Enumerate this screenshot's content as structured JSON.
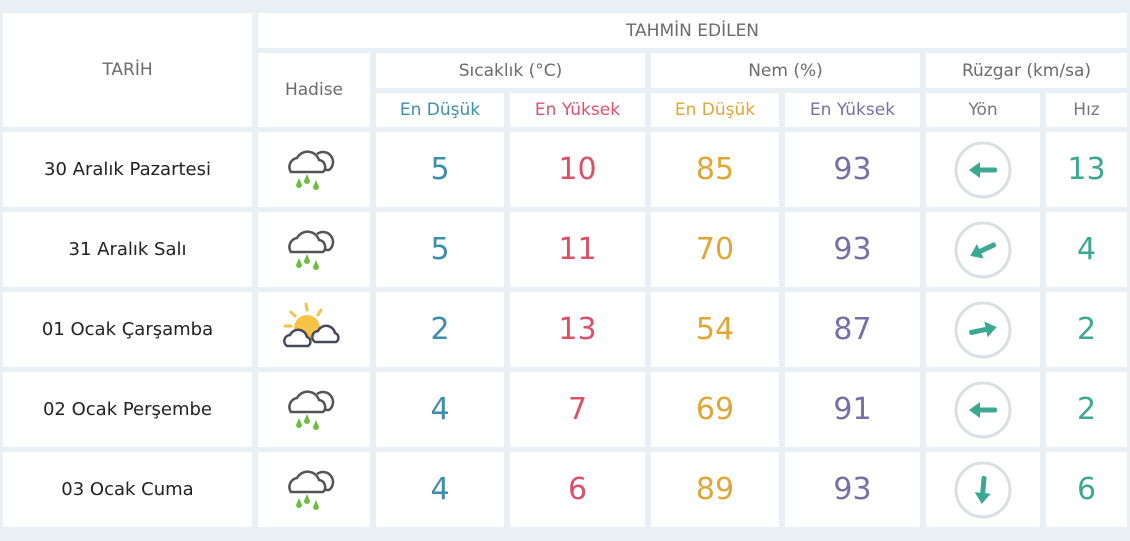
{
  "header": {
    "date": "TARİH",
    "forecast": "TAHMİN EDİLEN",
    "event": "Hadise",
    "temperature": "Sıcaklık (°C)",
    "humidity": "Nem (%)",
    "wind": "Rüzgar (km/sa)",
    "min": "En Düşük",
    "max": "En Yüksek",
    "direction": "Yön",
    "speed": "Hız"
  },
  "colors": {
    "min_temp": "#3d8eae",
    "max_temp": "#df4f68",
    "min_hum": "#e3a534",
    "max_hum": "#7a6ea8",
    "wind": "#3aa892"
  },
  "rows": [
    {
      "date": "30 Aralık Pazartesi",
      "icon": "rain-cloud-icon",
      "tmin": "5",
      "tmax": "10",
      "hmin": "85",
      "hmax": "93",
      "wind_arrow_deg": 180,
      "speed": "13"
    },
    {
      "date": "31 Aralık Salı",
      "icon": "rain-cloud-icon",
      "tmin": "5",
      "tmax": "11",
      "hmin": "70",
      "hmax": "93",
      "wind_arrow_deg": 155,
      "speed": "4"
    },
    {
      "date": "01 Ocak Çarşamba",
      "icon": "sun-cloud-icon",
      "tmin": "2",
      "tmax": "13",
      "hmin": "54",
      "hmax": "87",
      "wind_arrow_deg": -12,
      "speed": "2"
    },
    {
      "date": "02 Ocak Perşembe",
      "icon": "rain-cloud-icon",
      "tmin": "4",
      "tmax": "7",
      "hmin": "69",
      "hmax": "91",
      "wind_arrow_deg": 180,
      "speed": "2"
    },
    {
      "date": "03 Ocak Cuma",
      "icon": "rain-cloud-icon",
      "tmin": "4",
      "tmax": "6",
      "hmin": "89",
      "hmax": "93",
      "wind_arrow_deg": 95,
      "speed": "6"
    }
  ]
}
